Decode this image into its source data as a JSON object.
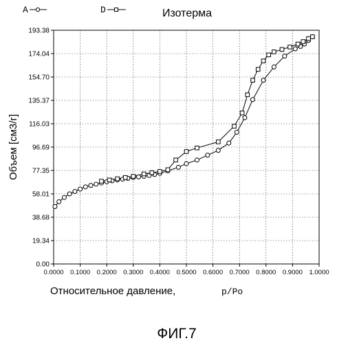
{
  "chart_data": {
    "type": "line",
    "title": "Изотерма",
    "xlabel": "Относительное давление,",
    "xlabel_suffix": "p/Po",
    "ylabel": "Объем [см3/г]",
    "xlim": [
      0,
      1
    ],
    "ylim": [
      0,
      193.38
    ],
    "grid": true,
    "legend_position": "top-left",
    "x_ticks": [
      "0.0000",
      "0.1000",
      "0.2000",
      "0.3000",
      "0.4000",
      "0.5000",
      "0.6000",
      "0.7000",
      "0.8000",
      "0.9000",
      "1.0000"
    ],
    "y_ticks": [
      "0.00",
      "19.34",
      "38.68",
      "58.01",
      "77.35",
      "96.69",
      "116.03",
      "135.37",
      "154.70",
      "174.04",
      "193.38"
    ],
    "series": [
      {
        "name": "A",
        "marker": "circle",
        "points": [
          [
            0.005,
            47.5
          ],
          [
            0.02,
            51.5
          ],
          [
            0.04,
            55.0
          ],
          [
            0.06,
            58.0
          ],
          [
            0.08,
            60.0
          ],
          [
            0.1,
            62.0
          ],
          [
            0.12,
            63.8
          ],
          [
            0.14,
            65.0
          ],
          [
            0.16,
            66.0
          ],
          [
            0.18,
            67.0
          ],
          [
            0.2,
            68.0
          ],
          [
            0.22,
            68.8
          ],
          [
            0.24,
            69.5
          ],
          [
            0.26,
            70.2
          ],
          [
            0.28,
            70.8
          ],
          [
            0.3,
            71.5
          ],
          [
            0.32,
            72.0
          ],
          [
            0.34,
            72.5
          ],
          [
            0.36,
            73.2
          ],
          [
            0.38,
            74.0
          ],
          [
            0.4,
            75.0
          ],
          [
            0.43,
            77.0
          ],
          [
            0.47,
            80.0
          ],
          [
            0.5,
            83.0
          ],
          [
            0.54,
            86.0
          ],
          [
            0.58,
            90.0
          ],
          [
            0.62,
            94.0
          ],
          [
            0.66,
            100.0
          ],
          [
            0.69,
            109.0
          ],
          [
            0.72,
            121.0
          ],
          [
            0.75,
            136.0
          ],
          [
            0.79,
            152.0
          ],
          [
            0.83,
            163.0
          ],
          [
            0.87,
            172.0
          ],
          [
            0.91,
            178.0
          ],
          [
            0.93,
            180.0
          ],
          [
            0.945,
            182.0
          ],
          [
            0.96,
            185.0
          ],
          [
            0.975,
            188.0
          ]
        ]
      },
      {
        "name": "D",
        "marker": "square",
        "points": [
          [
            0.975,
            188.0
          ],
          [
            0.96,
            186.5
          ],
          [
            0.94,
            184.0
          ],
          [
            0.92,
            182.0
          ],
          [
            0.89,
            179.5
          ],
          [
            0.86,
            177.5
          ],
          [
            0.83,
            175.5
          ],
          [
            0.81,
            173.0
          ],
          [
            0.79,
            168.0
          ],
          [
            0.77,
            161.0
          ],
          [
            0.75,
            152.0
          ],
          [
            0.73,
            140.0
          ],
          [
            0.71,
            125.0
          ],
          [
            0.68,
            114.0
          ],
          [
            0.62,
            101.0
          ],
          [
            0.54,
            96.0
          ],
          [
            0.5,
            93.0
          ],
          [
            0.46,
            86.0
          ],
          [
            0.43,
            78.0
          ],
          [
            0.4,
            76.5
          ],
          [
            0.37,
            75.5
          ],
          [
            0.34,
            74.5
          ],
          [
            0.3,
            72.5
          ],
          [
            0.27,
            71.5
          ],
          [
            0.24,
            70.5
          ],
          [
            0.21,
            69.5
          ],
          [
            0.18,
            68.5
          ]
        ]
      }
    ]
  },
  "figure_caption": "ФИГ.7"
}
